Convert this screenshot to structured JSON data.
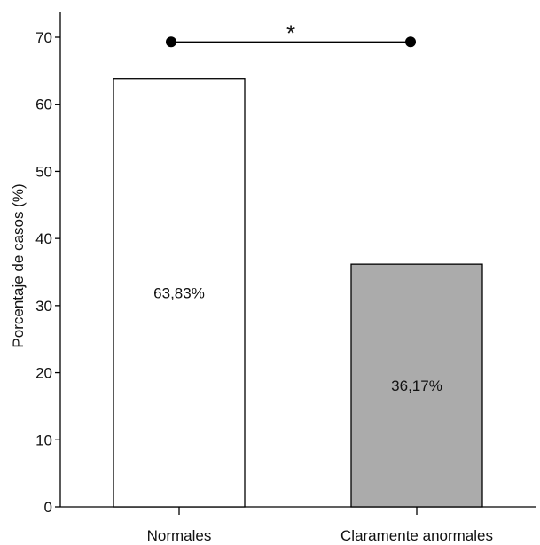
{
  "chart_data": {
    "type": "bar",
    "categories": [
      "Normales",
      "Claramente anormales"
    ],
    "values": [
      63.83,
      36.17
    ],
    "value_labels": [
      "63,83%",
      "36,17%"
    ],
    "colors": [
      "#ffffff",
      "#ababab"
    ],
    "title": "",
    "xlabel": "",
    "ylabel": "Porcentaje de casos (%)",
    "ylim": [
      0,
      70
    ],
    "yticks": [
      0,
      10,
      20,
      30,
      40,
      50,
      60,
      70
    ],
    "grid": false,
    "significance": {
      "between": [
        "Normales",
        "Claramente anormales"
      ],
      "marker": "*",
      "y": 69.3
    }
  }
}
